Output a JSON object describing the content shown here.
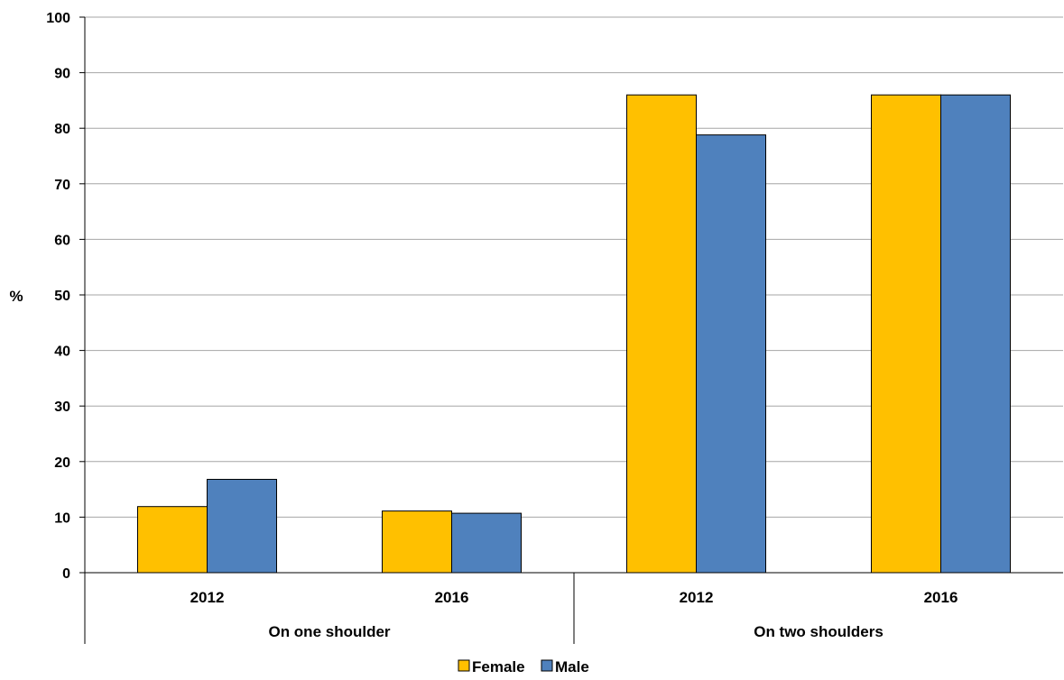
{
  "chart_data": {
    "type": "bar",
    "title": "",
    "xlabel": "",
    "ylabel": "%",
    "ylim": [
      0,
      100
    ],
    "yticks": [
      0,
      10,
      20,
      30,
      40,
      50,
      60,
      70,
      80,
      90,
      100
    ],
    "grid": true,
    "legend_position": "bottom",
    "groups": [
      "On one shoulder",
      "On two shoulders"
    ],
    "categories": [
      {
        "label": "2012",
        "group": "On one shoulder"
      },
      {
        "label": "2016",
        "group": "On one shoulder"
      },
      {
        "label": "2012",
        "group": "On two shoulders"
      },
      {
        "label": "2016",
        "group": "On two shoulders"
      }
    ],
    "series": [
      {
        "name": "Female",
        "color": "#FFC000",
        "values": [
          11.9,
          11.1,
          86.0,
          86.0
        ]
      },
      {
        "name": "Male",
        "color": "#4F81BD",
        "values": [
          16.8,
          10.7,
          78.8,
          86.0
        ]
      }
    ]
  }
}
